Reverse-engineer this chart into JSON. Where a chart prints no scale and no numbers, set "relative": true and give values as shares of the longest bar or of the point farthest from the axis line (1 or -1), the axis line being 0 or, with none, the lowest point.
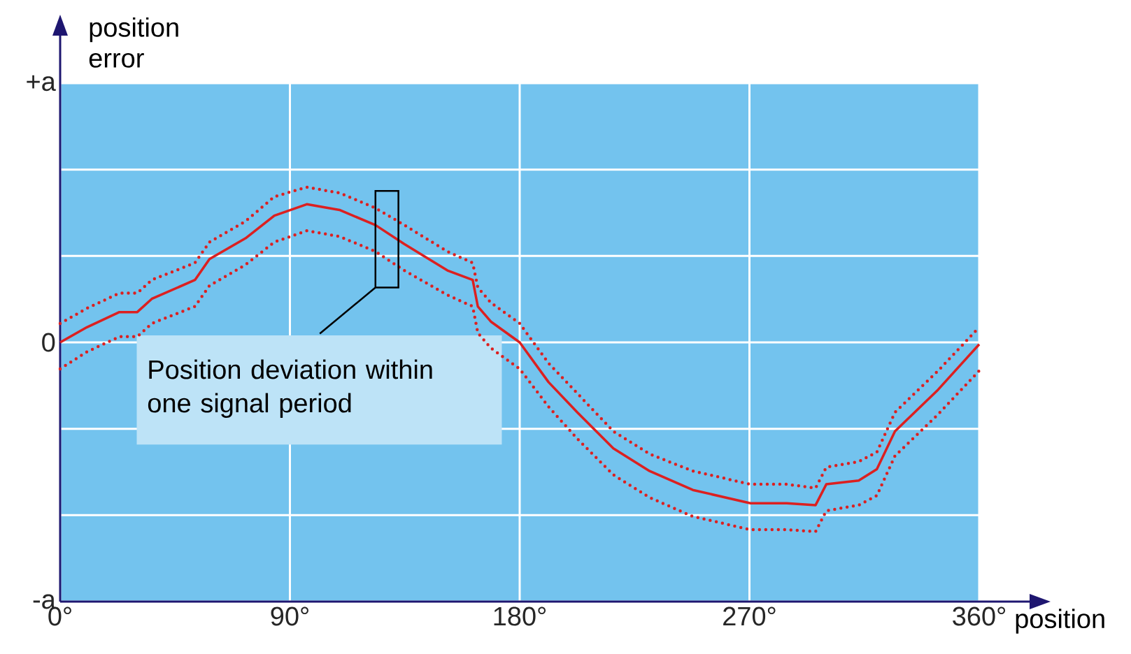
{
  "chart_data": {
    "type": "line",
    "relative": true,
    "xlabel": "position",
    "ylabel": "position error",
    "x": [
      0,
      10.5,
      23.2,
      30.2,
      35.9,
      52.8,
      58.5,
      72.6,
      83.9,
      96.6,
      109.4,
      123.5,
      134.8,
      151.7,
      161.6,
      163.6,
      168.7,
      180,
      191.3,
      202.6,
      216.7,
      230.9,
      247.8,
      270.4,
      284.6,
      295.9,
      300.1,
      312.8,
      319.9,
      327,
      343.9,
      360
    ],
    "series": [
      {
        "color": "#dc2020",
        "line_style": "solid",
        "values": [
          0,
          0.08,
          0.16,
          0.16,
          0.23,
          0.33,
          0.44,
          0.55,
          0.67,
          0.73,
          0.7,
          0.62,
          0.52,
          0.38,
          0.33,
          0.19,
          0.11,
          0,
          -0.21,
          -0.37,
          -0.56,
          -0.68,
          -0.78,
          -0.85,
          -0.85,
          -0.86,
          -0.75,
          -0.73,
          -0.67,
          -0.47,
          -0.25,
          -0.01
        ]
      },
      {
        "color": "#dc2020",
        "line_style": "dotted",
        "values": [
          0.1,
          0.18,
          0.26,
          0.26,
          0.33,
          0.42,
          0.53,
          0.64,
          0.77,
          0.82,
          0.79,
          0.71,
          0.62,
          0.48,
          0.42,
          0.29,
          0.21,
          0.1,
          -0.11,
          -0.27,
          -0.47,
          -0.59,
          -0.68,
          -0.75,
          -0.75,
          -0.77,
          -0.66,
          -0.63,
          -0.58,
          -0.37,
          -0.15,
          0.08
        ]
      },
      {
        "color": "#dc2020",
        "line_style": "dotted",
        "values": [
          -0.14,
          -0.05,
          0.03,
          0.03,
          0.1,
          0.19,
          0.3,
          0.41,
          0.53,
          0.59,
          0.56,
          0.48,
          0.38,
          0.25,
          0.19,
          0.05,
          -0.03,
          -0.14,
          -0.34,
          -0.51,
          -0.7,
          -0.82,
          -0.92,
          -0.99,
          -0.99,
          -1,
          -0.89,
          -0.86,
          -0.81,
          -0.6,
          -0.38,
          -0.15
        ]
      }
    ],
    "xlim": [
      0,
      360
    ],
    "xticks": [
      {
        "value": 0,
        "label": "0°"
      },
      {
        "value": 90,
        "label": "90°"
      },
      {
        "value": 180,
        "label": "180°"
      },
      {
        "value": 270,
        "label": "270°"
      },
      {
        "value": 360,
        "label": "360°"
      }
    ],
    "grid": true,
    "marker": "none",
    "annotations": [
      "+a",
      "0",
      "-a",
      "Position deviation within one signal period"
    ]
  }
}
